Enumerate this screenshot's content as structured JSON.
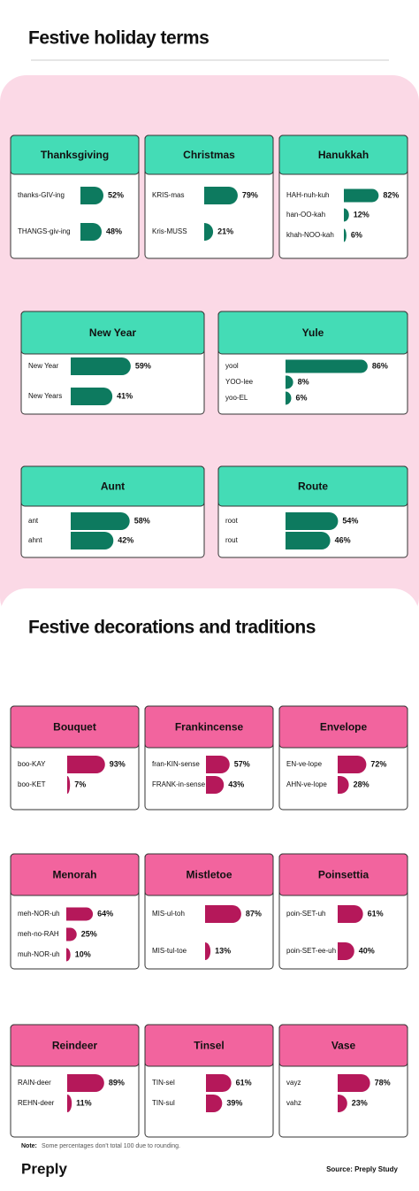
{
  "header": {
    "title": "Festive holiday terms"
  },
  "sections": [
    {
      "title": "Festive holiday terms",
      "cards": [
        {
          "title": "Thanksgiving",
          "rows": [
            {
              "label": "thanks-GIV-ing",
              "value": 52,
              "value_label": "52%"
            },
            {
              "label": "THANGS-giv-ing",
              "value": 48,
              "value_label": "48%"
            }
          ]
        },
        {
          "title": "Christmas",
          "rows": [
            {
              "label": "KRIS-mas",
              "value": 79,
              "value_label": "79%"
            },
            {
              "label": "Kris-MUSS",
              "value": 21,
              "value_label": "21%"
            }
          ]
        },
        {
          "title": "Hanukkah",
          "rows": [
            {
              "label": "HAH-nuh-kuh",
              "value": 82,
              "value_label": "82%"
            },
            {
              "label": "han-OO-kah",
              "value": 12,
              "value_label": "12%"
            },
            {
              "label": "khah-NOO-kah",
              "value": 6,
              "value_label": "6%"
            }
          ]
        },
        {
          "title": "New Year",
          "rows": [
            {
              "label": "New Year",
              "value": 59,
              "value_label": "59%"
            },
            {
              "label": "New Years",
              "value": 41,
              "value_label": "41%"
            }
          ]
        },
        {
          "title": "Yule",
          "rows": [
            {
              "label": "yool",
              "value": 86,
              "value_label": "86%"
            },
            {
              "label": "YOO-lee",
              "value": 8,
              "value_label": "8%"
            },
            {
              "label": "yoo-EL",
              "value": 6,
              "value_label": "6%"
            }
          ]
        },
        {
          "title": "Aunt",
          "rows": [
            {
              "label": "ant",
              "value": 58,
              "value_label": "58%"
            },
            {
              "label": "ahnt",
              "value": 42,
              "value_label": "42%"
            }
          ]
        },
        {
          "title": "Route",
          "rows": [
            {
              "label": "root",
              "value": 54,
              "value_label": "54%"
            },
            {
              "label": "rout",
              "value": 46,
              "value_label": "46%"
            }
          ]
        }
      ]
    },
    {
      "title": "Festive decorations and traditions",
      "cards": [
        {
          "title": "Bouquet",
          "rows": [
            {
              "label": "boo-KAY",
              "value": 93,
              "value_label": "93%"
            },
            {
              "label": "boo-KET",
              "value": 7,
              "value_label": "7%"
            }
          ]
        },
        {
          "title": "Frankincense",
          "rows": [
            {
              "label": "fran-KIN-sense",
              "value": 57,
              "value_label": "57%"
            },
            {
              "label": "FRANK-in-sense",
              "value": 43,
              "value_label": "43%"
            }
          ]
        },
        {
          "title": "Envelope",
          "rows": [
            {
              "label": "EN-ve-lope",
              "value": 72,
              "value_label": "72%"
            },
            {
              "label": "AHN-ve-lope",
              "value": 28,
              "value_label": "28%"
            }
          ]
        },
        {
          "title": "Menorah",
          "rows": [
            {
              "label": "meh-NOR-uh",
              "value": 64,
              "value_label": "64%"
            },
            {
              "label": "meh-no-RAH",
              "value": 25,
              "value_label": "25%"
            },
            {
              "label": "muh-NOR-uh",
              "value": 10,
              "value_label": "10%"
            }
          ]
        },
        {
          "title": "Mistletoe",
          "rows": [
            {
              "label": "MIS-ul-toh",
              "value": 87,
              "value_label": "87%"
            },
            {
              "label": "MIS-tul-toe",
              "value": 13,
              "value_label": "13%"
            }
          ]
        },
        {
          "title": "Poinsettia",
          "rows": [
            {
              "label": "poin-SET-uh",
              "value": 61,
              "value_label": "61%"
            },
            {
              "label": "poin-SET-ee-uh",
              "value": 40,
              "value_label": "40%"
            }
          ]
        },
        {
          "title": "Reindeer",
          "rows": [
            {
              "label": "RAIN-deer",
              "value": 89,
              "value_label": "89%"
            },
            {
              "label": "REHN-deer",
              "value": 11,
              "value_label": "11%"
            }
          ]
        },
        {
          "title": "Tinsel",
          "rows": [
            {
              "label": "TIN-sel",
              "value": 61,
              "value_label": "61%"
            },
            {
              "label": "TIN-sul",
              "value": 39,
              "value_label": "39%"
            }
          ]
        },
        {
          "title": "Vase",
          "rows": [
            {
              "label": "vayz",
              "value": 78,
              "value_label": "78%"
            },
            {
              "label": "vahz",
              "value": 23,
              "value_label": "23%"
            }
          ]
        }
      ]
    }
  ],
  "note": {
    "label": "Note:",
    "text": "Some percentages don't total 100 due to rounding."
  },
  "footer": {
    "logo": "Preply",
    "source": "Source: Preply Study"
  }
}
